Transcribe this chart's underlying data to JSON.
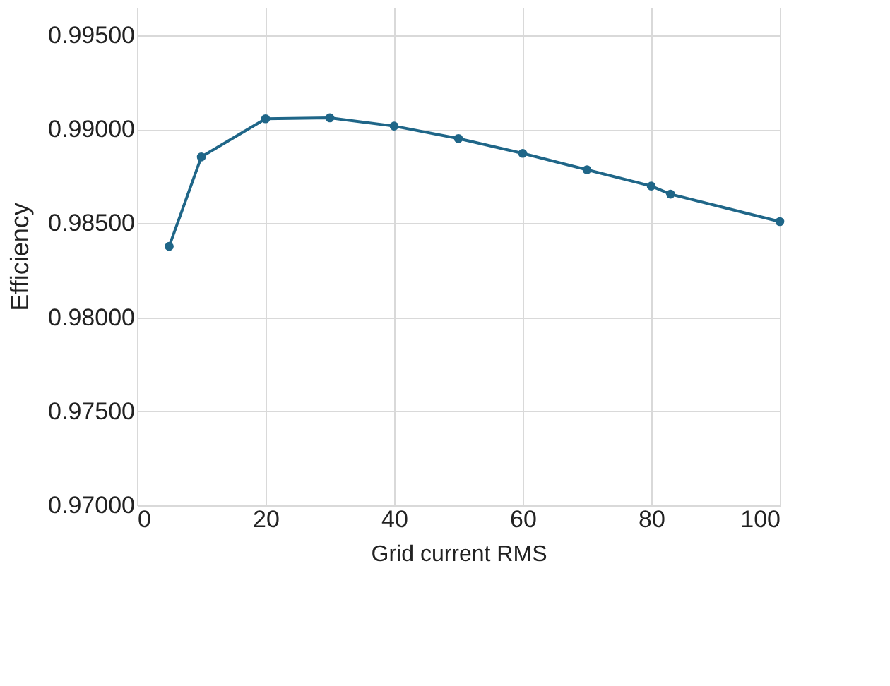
{
  "chart_data": {
    "type": "line",
    "xlabel": "Grid current RMS",
    "ylabel": "Efficiency",
    "x": [
      5,
      10,
      20,
      30,
      40,
      50,
      60,
      70,
      80,
      83,
      100
    ],
    "series": [
      {
        "color": "#1f6688",
        "values": [
          0.98377,
          0.98853,
          0.99056,
          0.99061,
          0.99017,
          0.98951,
          0.98872,
          0.98785,
          0.98698,
          0.98655,
          0.98509
        ]
      }
    ],
    "xlim": [
      0,
      100
    ],
    "xticks": [
      0,
      20,
      40,
      60,
      80,
      100
    ],
    "ylim": [
      0.97,
      0.9965
    ],
    "yticks": [
      {
        "value": 0.97,
        "label": "0.97000"
      },
      {
        "value": 0.975,
        "label": "0.97500"
      },
      {
        "value": 0.98,
        "label": "0.98000"
      },
      {
        "value": 0.985,
        "label": "0.98500"
      },
      {
        "value": 0.99,
        "label": "0.99000"
      },
      {
        "value": 0.995,
        "label": "0.99500"
      }
    ],
    "grid": true,
    "marker": "circle",
    "line_style": "solid"
  }
}
